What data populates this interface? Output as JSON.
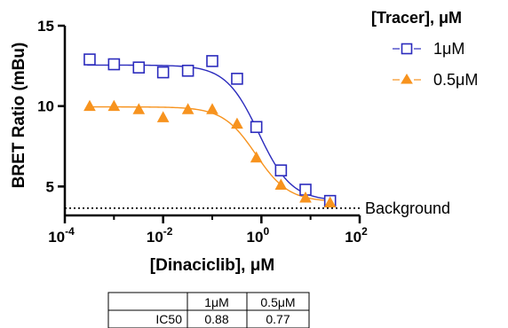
{
  "chart_data": {
    "type": "scatter",
    "title": "",
    "xlabel": "[Dinaciclib], μM",
    "ylabel": "BRET Ratio (mBu)",
    "x_scale": "log",
    "xlim": [
      0.0001,
      100
    ],
    "ylim": [
      3.2,
      15
    ],
    "x_tick_values": [
      0.0001,
      0.01,
      1,
      100
    ],
    "x_tick_labels": [
      {
        "base": "10",
        "exp": "-4"
      },
      {
        "base": "10",
        "exp": "-2"
      },
      {
        "base": "10",
        "exp": "0"
      },
      {
        "base": "10",
        "exp": "2"
      }
    ],
    "y_ticks": [
      5,
      10,
      15
    ],
    "grid": false,
    "legend": {
      "title": "[Tracer], μM",
      "position": "top-right",
      "entries": [
        {
          "label": "1μM",
          "marker": "open-square",
          "color": "#2b2bbd"
        },
        {
          "label": "0.5μM",
          "marker": "filled-triangle",
          "color": "#f7931e"
        }
      ]
    },
    "series": [
      {
        "name": "1μM",
        "color": "#2b2bbd",
        "marker": "open-square",
        "x": [
          0.00032,
          0.001,
          0.0032,
          0.01,
          0.032,
          0.1,
          0.32,
          0.79,
          2.5,
          7.9,
          25
        ],
        "y": [
          12.9,
          12.6,
          12.4,
          12.1,
          12.2,
          12.8,
          11.7,
          8.7,
          6.0,
          4.8,
          4.1
        ],
        "fit": {
          "top": 12.55,
          "bottom": 4.1,
          "ic50": 0.88,
          "hill": 1.3
        }
      },
      {
        "name": "0.5μM",
        "color": "#f7931e",
        "marker": "filled-triangle",
        "x": [
          0.00032,
          0.001,
          0.0032,
          0.01,
          0.032,
          0.1,
          0.32,
          0.79,
          2.5,
          7.9,
          25
        ],
        "y": [
          10.0,
          10.0,
          9.8,
          9.3,
          9.8,
          9.8,
          8.9,
          6.8,
          5.1,
          4.3,
          4.0
        ],
        "fit": {
          "top": 9.95,
          "bottom": 4.05,
          "ic50": 0.77,
          "hill": 1.3
        }
      }
    ],
    "reference_line": {
      "y": 3.65,
      "style": "dotted",
      "label": "Background"
    },
    "table": {
      "headers": [
        "",
        "1μM",
        "0.5μM"
      ],
      "rows": [
        [
          "IC50",
          "0.88",
          "0.77"
        ]
      ]
    }
  }
}
